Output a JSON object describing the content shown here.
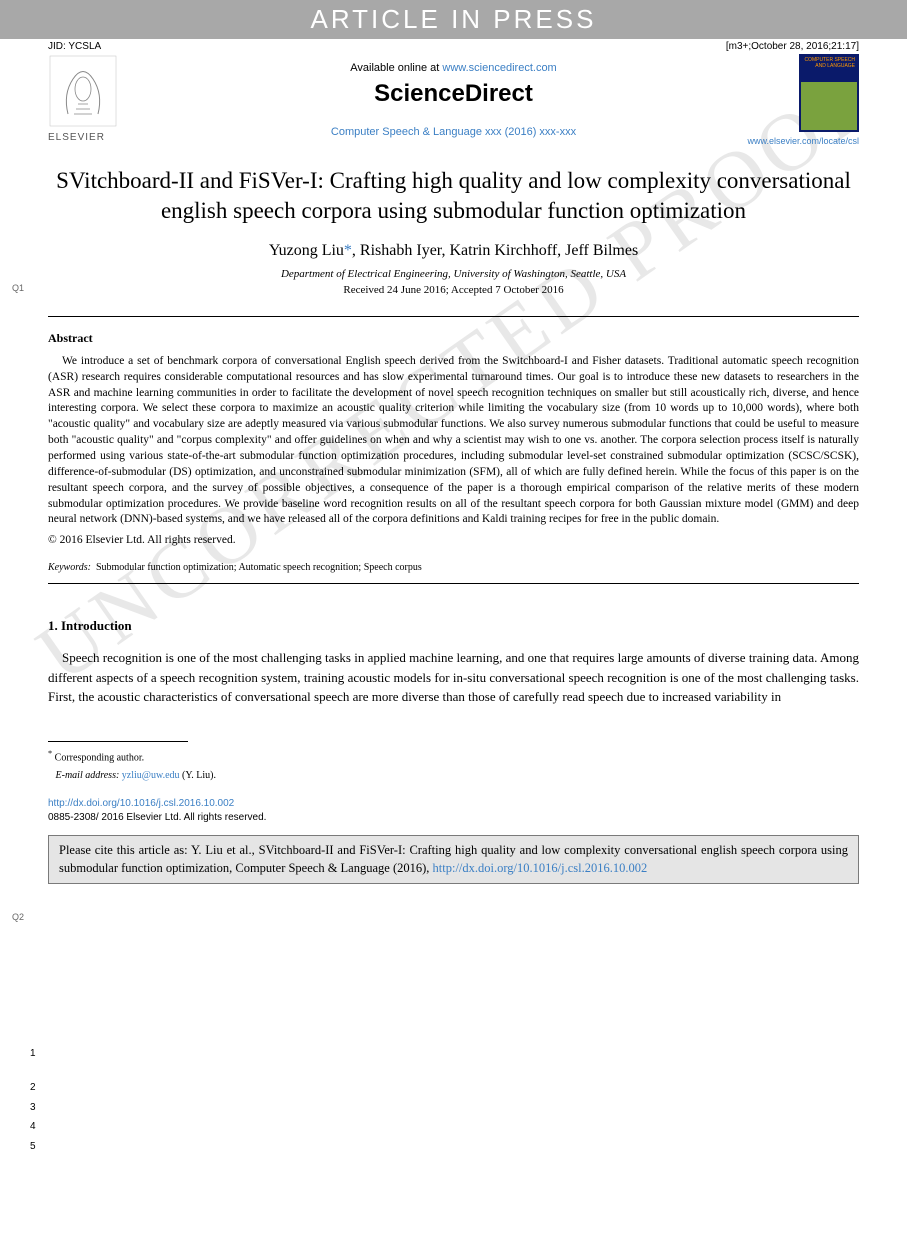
{
  "header_bar": "ARTICLE IN PRESS",
  "meta": {
    "jid": "JID: YCSLA",
    "stamp": "[m3+;October 28, 2016;21:17]"
  },
  "available_prefix": "Available online at ",
  "available_link": "www.sciencedirect.com",
  "sciencedirect": "ScienceDirect",
  "elsevier_label": "ELSEVIER",
  "journal_thumb": "COMPUTER SPEECH AND LANGUAGE",
  "journal_locate": "www.elsevier.com/locate/csl",
  "journal_citation": "Computer Speech & Language xxx (2016) xxx-xxx",
  "title": "SVitchboard-II and FiSVer-I: Crafting high quality and low complexity conversational english speech corpora using submodular function optimization",
  "authors_html": "Yuzong Liu<span class='corr'>*</span>, Rishabh Iyer, Katrin Kirchhoff, Jeff Bilmes",
  "affiliation": "Department of Electrical Engineering, University of Washington, Seattle, USA",
  "dates": "Received 24 June 2016; Accepted 7 October 2016",
  "q1": "Q1",
  "q2": "Q2",
  "abstract_heading": "Abstract",
  "abstract_body": "We introduce a set of benchmark corpora of conversational English speech derived from the Switchboard-I and Fisher datasets. Traditional automatic speech recognition (ASR) research requires considerable computational resources and has slow experimental turnaround times. Our goal is to introduce these new datasets to researchers in the ASR and machine learning communities in order to facilitate the development of novel speech recognition techniques on smaller but still acoustically rich, diverse, and hence interesting corpora. We select these corpora to maximize an acoustic quality criterion while limiting the vocabulary size (from 10 words up to 10,000 words), where both \"acoustic quality\" and vocabulary size are adeptly measured via various submodular functions. We also survey numerous submodular functions that could be useful to measure both \"acoustic quality\" and \"corpus complexity\" and offer guidelines on when and why a scientist may wish to one vs. another. The corpora selection process itself is naturally performed using various state-of-the-art submodular function optimization procedures, including submodular level-set constrained submodular optimization (SCSC/SCSK), difference-of-submodular (DS) optimization, and unconstrained submodular minimization (SFM), all of which are fully defined herein. While the focus of this paper is on the resultant speech corpora, and the survey of possible objectives, a consequence of the paper is a thorough empirical comparison of the relative merits of these modern submodular optimization procedures. We provide baseline word recognition results on all of the resultant speech corpora for both Gaussian mixture model (GMM) and deep neural network (DNN)-based systems, and we have released all of the corpora definitions and Kaldi training recipes for free in the public domain.",
  "copyright": "© 2016 Elsevier Ltd. All rights reserved.",
  "keywords_label": "Keywords:",
  "keywords_text": "Submodular function optimization; Automatic speech recognition; Speech corpus",
  "section1": "1. Introduction",
  "intro_body": "Speech recognition is one of the most challenging tasks in applied machine learning, and one that requires large amounts of diverse training data. Among different aspects of a speech recognition system, training acoustic models for in-situ conversational speech recognition is one of the most challenging tasks. First, the acoustic characteristics of conversational speech are more diverse than those of carefully read speech due to increased variability in",
  "line_numbers": {
    "intro": "1",
    "body": [
      "2",
      "3",
      "4",
      "5"
    ]
  },
  "footnote_marker": "*",
  "footnote_corresponding": "Corresponding author.",
  "footnote_email_label": "E-mail address:",
  "footnote_email": "yzliu@uw.edu",
  "footnote_email_suffix": "(Y. Liu).",
  "doi_link": "http://dx.doi.org/10.1016/j.csl.2016.10.002",
  "issn_line": "0885-2308/ 2016 Elsevier Ltd. All rights reserved.",
  "cite_prefix": "Please cite this article as: Y. Liu et al., SVitchboard-II and FiSVer-I: Crafting high quality and low complexity conversational english speech corpora using submodular function optimization, Computer Speech & Language (2016), ",
  "cite_link": "http://dx.doi.org/10.1016/j.csl.2016.10.002",
  "watermark": "UNCORRECTED PROOF"
}
